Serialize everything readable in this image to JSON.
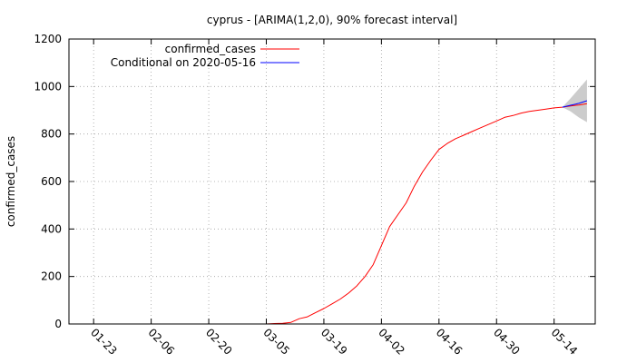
{
  "chart_data": {
    "type": "line",
    "title": "cyprus -  [ARIMA(1,2,0), 90% forecast interval]",
    "ylabel": "confirmed_cases",
    "xlabel": "",
    "ylim": [
      0,
      1200
    ],
    "xlim": [
      "2020-01-17",
      "2020-05-24"
    ],
    "y_ticks": [
      0,
      200,
      400,
      600,
      800,
      1000,
      1200
    ],
    "x_ticks": [
      {
        "date": "2020-01-23",
        "label": "01-23"
      },
      {
        "date": "2020-02-06",
        "label": "02-06"
      },
      {
        "date": "2020-02-20",
        "label": "02-20"
      },
      {
        "date": "2020-03-05",
        "label": "03-05"
      },
      {
        "date": "2020-03-19",
        "label": "03-19"
      },
      {
        "date": "2020-04-02",
        "label": "04-02"
      },
      {
        "date": "2020-04-16",
        "label": "04-16"
      },
      {
        "date": "2020-04-30",
        "label": "04-30"
      },
      {
        "date": "2020-05-14",
        "label": "05-14"
      }
    ],
    "grid": true,
    "legend_position": "top-left",
    "series": [
      {
        "name": "confirmed_cases",
        "color": "#ff0000",
        "points": [
          [
            "2020-03-03",
            0
          ],
          [
            "2020-03-05",
            0
          ],
          [
            "2020-03-07",
            2
          ],
          [
            "2020-03-09",
            3
          ],
          [
            "2020-03-11",
            7
          ],
          [
            "2020-03-13",
            22
          ],
          [
            "2020-03-15",
            30
          ],
          [
            "2020-03-17",
            48
          ],
          [
            "2020-03-19",
            65
          ],
          [
            "2020-03-21",
            85
          ],
          [
            "2020-03-23",
            105
          ],
          [
            "2020-03-25",
            130
          ],
          [
            "2020-03-27",
            160
          ],
          [
            "2020-03-29",
            200
          ],
          [
            "2020-03-31",
            250
          ],
          [
            "2020-04-02",
            330
          ],
          [
            "2020-04-04",
            410
          ],
          [
            "2020-04-06",
            460
          ],
          [
            "2020-04-08",
            510
          ],
          [
            "2020-04-10",
            580
          ],
          [
            "2020-04-12",
            640
          ],
          [
            "2020-04-14",
            690
          ],
          [
            "2020-04-16",
            735
          ],
          [
            "2020-04-18",
            760
          ],
          [
            "2020-04-20",
            780
          ],
          [
            "2020-04-22",
            795
          ],
          [
            "2020-04-24",
            810
          ],
          [
            "2020-04-26",
            825
          ],
          [
            "2020-04-28",
            840
          ],
          [
            "2020-04-30",
            855
          ],
          [
            "2020-05-02",
            870
          ],
          [
            "2020-05-04",
            878
          ],
          [
            "2020-05-06",
            888
          ],
          [
            "2020-05-08",
            895
          ],
          [
            "2020-05-10",
            900
          ],
          [
            "2020-05-12",
            905
          ],
          [
            "2020-05-14",
            910
          ],
          [
            "2020-05-16",
            913
          ],
          [
            "2020-05-18",
            918
          ],
          [
            "2020-05-20",
            922
          ],
          [
            "2020-05-22",
            928
          ]
        ]
      },
      {
        "name": "Conditional on 2020-05-16",
        "color": "#0000ff",
        "points": [
          [
            "2020-05-16",
            913
          ],
          [
            "2020-05-18",
            921
          ],
          [
            "2020-05-20",
            929
          ],
          [
            "2020-05-22",
            940
          ]
        ]
      }
    ],
    "forecast_interval": {
      "color": "#cccccc",
      "start": "2020-05-16",
      "upper": [
        [
          "2020-05-16",
          913
        ],
        [
          "2020-05-18",
          950
        ],
        [
          "2020-05-20",
          990
        ],
        [
          "2020-05-22",
          1030
        ]
      ],
      "lower": [
        [
          "2020-05-16",
          913
        ],
        [
          "2020-05-18",
          895
        ],
        [
          "2020-05-20",
          870
        ],
        [
          "2020-05-22",
          850
        ]
      ]
    }
  }
}
